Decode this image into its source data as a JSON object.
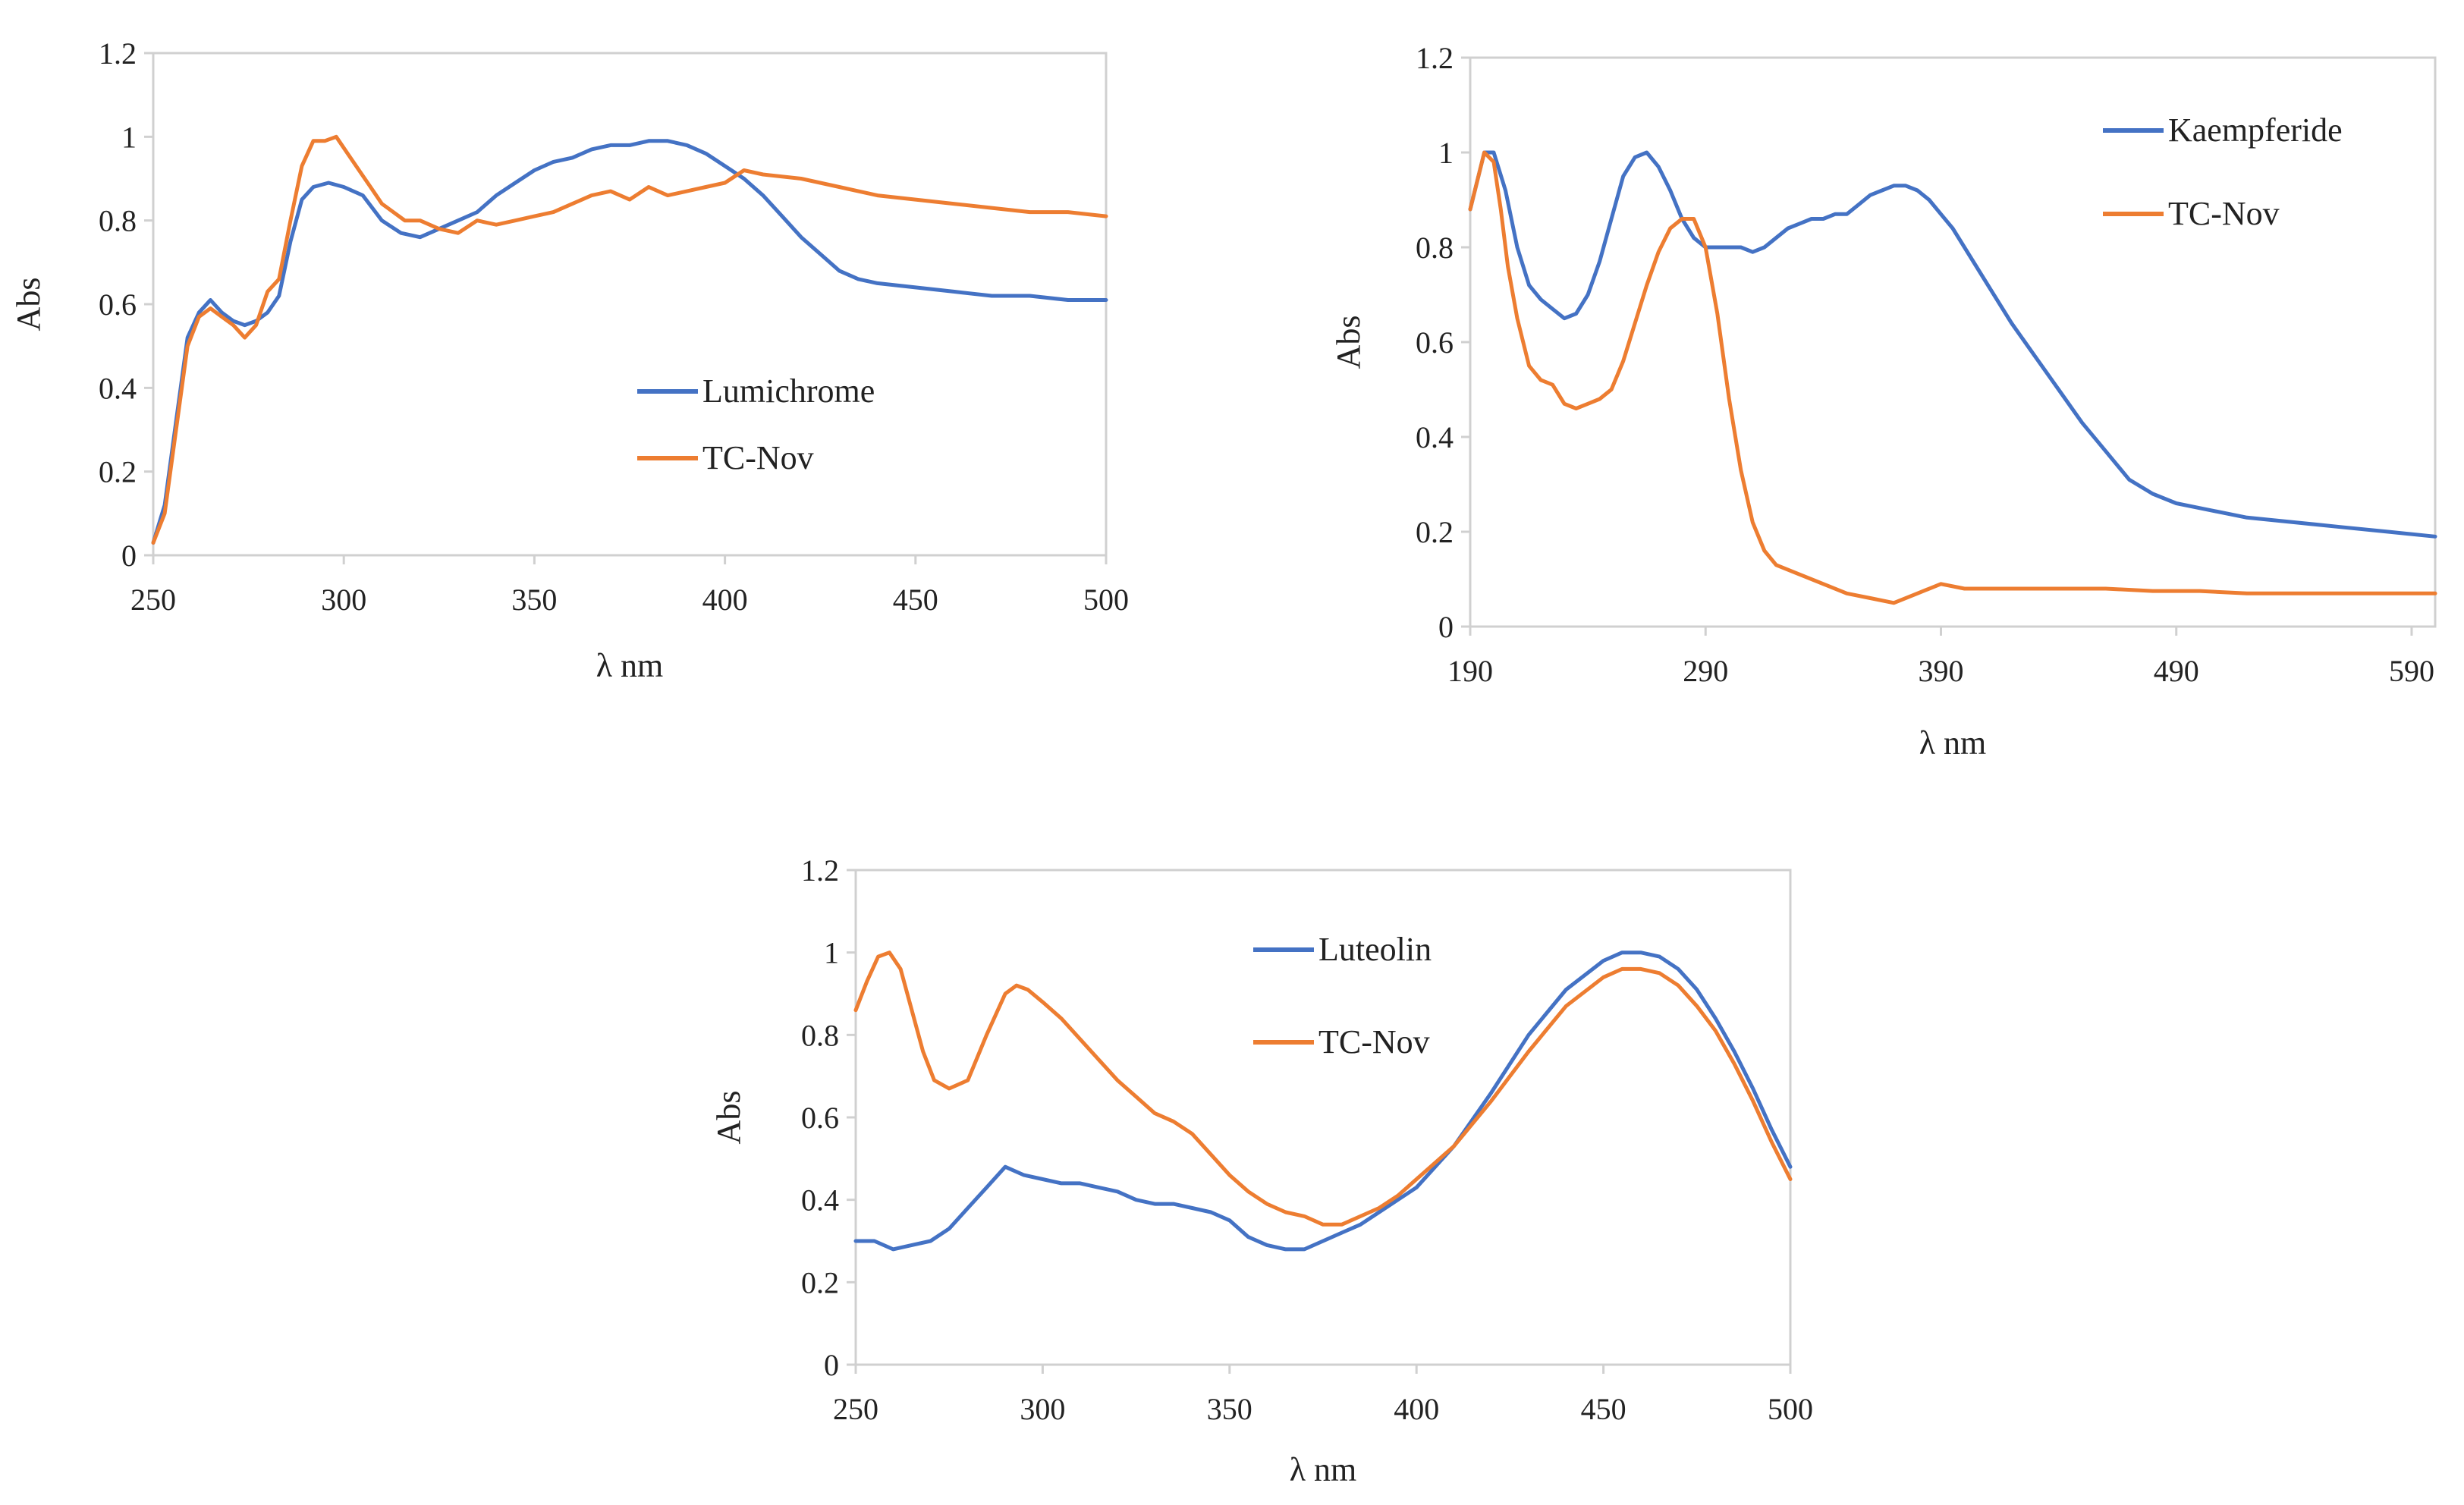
{
  "figure": {
    "panels": 3
  },
  "colors": {
    "blue": "#4472C4",
    "orange": "#ED7D31",
    "axis": "#d0d0d0"
  },
  "chart_data": [
    {
      "type": "line",
      "title": "",
      "xlabel": "λ nm",
      "ylabel": "Abs",
      "xlim": [
        250,
        500
      ],
      "ylim": [
        0,
        1.2
      ],
      "xticks": [
        250,
        300,
        350,
        400,
        450,
        500
      ],
      "xtick_labels": [
        "250",
        "300",
        "350",
        "400",
        "450",
        "500"
      ],
      "yticks": [
        0,
        0.2,
        0.4,
        0.6,
        0.8,
        1,
        1.2
      ],
      "ytick_labels": [
        "0",
        "0.2",
        "0.4",
        "0.6",
        "0.8",
        "1",
        "1.2"
      ],
      "legend_position": "center-right",
      "series": [
        {
          "name": "Lumichrome",
          "color": "#4472C4",
          "x": [
            250,
            253,
            256,
            259,
            262,
            265,
            268,
            271,
            274,
            277,
            280,
            283,
            286,
            289,
            292,
            296,
            300,
            305,
            310,
            315,
            320,
            325,
            330,
            335,
            340,
            345,
            350,
            355,
            360,
            365,
            370,
            375,
            380,
            385,
            390,
            395,
            400,
            405,
            410,
            415,
            420,
            425,
            430,
            435,
            440,
            450,
            460,
            470,
            480,
            490,
            500
          ],
          "y": [
            0.03,
            0.12,
            0.32,
            0.52,
            0.58,
            0.61,
            0.58,
            0.56,
            0.55,
            0.56,
            0.58,
            0.62,
            0.75,
            0.85,
            0.88,
            0.89,
            0.88,
            0.86,
            0.8,
            0.77,
            0.76,
            0.78,
            0.8,
            0.82,
            0.86,
            0.89,
            0.92,
            0.94,
            0.95,
            0.97,
            0.98,
            0.98,
            0.99,
            0.99,
            0.98,
            0.96,
            0.93,
            0.9,
            0.86,
            0.81,
            0.76,
            0.72,
            0.68,
            0.66,
            0.65,
            0.64,
            0.63,
            0.62,
            0.62,
            0.61,
            0.61
          ]
        },
        {
          "name": "TC-Nov",
          "color": "#ED7D31",
          "x": [
            250,
            253,
            256,
            259,
            262,
            265,
            268,
            271,
            274,
            277,
            280,
            283,
            286,
            289,
            292,
            295,
            298,
            301,
            304,
            307,
            310,
            313,
            316,
            320,
            325,
            330,
            335,
            340,
            345,
            350,
            355,
            360,
            365,
            370,
            375,
            380,
            385,
            390,
            395,
            400,
            405,
            410,
            420,
            430,
            440,
            450,
            460,
            470,
            480,
            490,
            500
          ],
          "y": [
            0.03,
            0.1,
            0.3,
            0.5,
            0.57,
            0.59,
            0.57,
            0.55,
            0.52,
            0.55,
            0.63,
            0.66,
            0.8,
            0.93,
            0.99,
            0.99,
            1.0,
            0.96,
            0.92,
            0.88,
            0.84,
            0.82,
            0.8,
            0.8,
            0.78,
            0.77,
            0.8,
            0.79,
            0.8,
            0.81,
            0.82,
            0.84,
            0.86,
            0.87,
            0.85,
            0.88,
            0.86,
            0.87,
            0.88,
            0.89,
            0.92,
            0.91,
            0.9,
            0.88,
            0.86,
            0.85,
            0.84,
            0.83,
            0.82,
            0.82,
            0.81
          ]
        }
      ]
    },
    {
      "type": "line",
      "title": "",
      "xlabel": "λ nm",
      "ylabel": "Abs",
      "xlim": [
        190,
        600
      ],
      "ylim": [
        0,
        1.2
      ],
      "xticks": [
        190,
        290,
        390,
        490,
        590
      ],
      "xtick_labels": [
        "190",
        "290",
        "390",
        "490",
        "590"
      ],
      "yticks": [
        0,
        0.2,
        0.4,
        0.6,
        0.8,
        1,
        1.2
      ],
      "ytick_labels": [
        "0",
        "0.2",
        "0.4",
        "0.6",
        "0.8",
        "1",
        "1.2"
      ],
      "legend_position": "top-right",
      "series": [
        {
          "name": "Kaempferide",
          "color": "#4472C4",
          "x": [
            190,
            193,
            196,
            200,
            205,
            210,
            215,
            220,
            225,
            230,
            235,
            240,
            245,
            250,
            255,
            260,
            265,
            270,
            275,
            280,
            285,
            290,
            295,
            300,
            305,
            310,
            315,
            320,
            325,
            330,
            335,
            340,
            345,
            350,
            355,
            360,
            365,
            370,
            375,
            380,
            385,
            390,
            395,
            400,
            405,
            410,
            420,
            430,
            440,
            450,
            460,
            470,
            480,
            490,
            500,
            520,
            540,
            560,
            580,
            600
          ],
          "y": [
            0.88,
            0.94,
            1.0,
            1.0,
            0.92,
            0.8,
            0.72,
            0.69,
            0.67,
            0.65,
            0.66,
            0.7,
            0.77,
            0.86,
            0.95,
            0.99,
            1.0,
            0.97,
            0.92,
            0.86,
            0.82,
            0.8,
            0.8,
            0.8,
            0.8,
            0.79,
            0.8,
            0.82,
            0.84,
            0.85,
            0.86,
            0.86,
            0.87,
            0.87,
            0.89,
            0.91,
            0.92,
            0.93,
            0.93,
            0.92,
            0.9,
            0.87,
            0.84,
            0.8,
            0.76,
            0.72,
            0.64,
            0.57,
            0.5,
            0.43,
            0.37,
            0.31,
            0.28,
            0.26,
            0.25,
            0.23,
            0.22,
            0.21,
            0.2,
            0.19
          ]
        },
        {
          "name": "TC-Nov",
          "color": "#ED7D31",
          "x": [
            190,
            193,
            196,
            200,
            203,
            206,
            210,
            215,
            220,
            225,
            230,
            235,
            240,
            245,
            250,
            255,
            260,
            265,
            270,
            275,
            280,
            285,
            290,
            295,
            300,
            305,
            310,
            315,
            320,
            330,
            340,
            350,
            360,
            370,
            380,
            390,
            400,
            420,
            440,
            460,
            480,
            500,
            520,
            540,
            560,
            580,
            600
          ],
          "y": [
            0.88,
            0.94,
            1.0,
            0.98,
            0.88,
            0.76,
            0.65,
            0.55,
            0.52,
            0.51,
            0.47,
            0.46,
            0.47,
            0.48,
            0.5,
            0.56,
            0.64,
            0.72,
            0.79,
            0.84,
            0.86,
            0.86,
            0.8,
            0.66,
            0.48,
            0.33,
            0.22,
            0.16,
            0.13,
            0.11,
            0.09,
            0.07,
            0.06,
            0.05,
            0.07,
            0.09,
            0.08,
            0.08,
            0.08,
            0.08,
            0.075,
            0.075,
            0.07,
            0.07,
            0.07,
            0.07,
            0.07
          ]
        }
      ]
    },
    {
      "type": "line",
      "title": "",
      "xlabel": "λ nm",
      "ylabel": "Abs",
      "xlim": [
        250,
        500
      ],
      "ylim": [
        0,
        1.2
      ],
      "xticks": [
        250,
        300,
        350,
        400,
        450,
        500
      ],
      "xtick_labels": [
        "250",
        "300",
        "350",
        "400",
        "450",
        "500"
      ],
      "yticks": [
        0,
        0.2,
        0.4,
        0.6,
        0.8,
        1,
        1.2
      ],
      "ytick_labels": [
        "0",
        "0.2",
        "0.4",
        "0.6",
        "0.8",
        "1",
        "1.2"
      ],
      "legend_position": "top-center",
      "series": [
        {
          "name": "Luteolin",
          "color": "#4472C4",
          "x": [
            250,
            255,
            260,
            265,
            270,
            275,
            280,
            285,
            290,
            295,
            300,
            305,
            310,
            315,
            320,
            325,
            330,
            335,
            340,
            345,
            350,
            355,
            360,
            365,
            370,
            375,
            380,
            385,
            390,
            395,
            400,
            410,
            420,
            430,
            440,
            450,
            455,
            460,
            465,
            470,
            475,
            480,
            485,
            490,
            495,
            500
          ],
          "y": [
            0.3,
            0.3,
            0.28,
            0.29,
            0.3,
            0.33,
            0.38,
            0.43,
            0.48,
            0.46,
            0.45,
            0.44,
            0.44,
            0.43,
            0.42,
            0.4,
            0.39,
            0.39,
            0.38,
            0.37,
            0.35,
            0.31,
            0.29,
            0.28,
            0.28,
            0.3,
            0.32,
            0.34,
            0.37,
            0.4,
            0.43,
            0.53,
            0.66,
            0.8,
            0.91,
            0.98,
            1.0,
            1.0,
            0.99,
            0.96,
            0.91,
            0.84,
            0.76,
            0.67,
            0.57,
            0.48
          ]
        },
        {
          "name": "TC-Nov",
          "color": "#ED7D31",
          "x": [
            250,
            253,
            256,
            259,
            262,
            265,
            268,
            271,
            275,
            280,
            285,
            290,
            293,
            296,
            300,
            305,
            310,
            315,
            320,
            325,
            330,
            335,
            340,
            345,
            350,
            355,
            360,
            365,
            370,
            375,
            380,
            385,
            390,
            395,
            400,
            410,
            420,
            430,
            440,
            450,
            455,
            460,
            465,
            470,
            475,
            480,
            485,
            490,
            495,
            500
          ],
          "y": [
            0.86,
            0.93,
            0.99,
            1.0,
            0.96,
            0.86,
            0.76,
            0.69,
            0.67,
            0.69,
            0.8,
            0.9,
            0.92,
            0.91,
            0.88,
            0.84,
            0.79,
            0.74,
            0.69,
            0.65,
            0.61,
            0.59,
            0.56,
            0.51,
            0.46,
            0.42,
            0.39,
            0.37,
            0.36,
            0.34,
            0.34,
            0.36,
            0.38,
            0.41,
            0.45,
            0.53,
            0.64,
            0.76,
            0.87,
            0.94,
            0.96,
            0.96,
            0.95,
            0.92,
            0.87,
            0.81,
            0.73,
            0.64,
            0.54,
            0.45
          ]
        }
      ]
    }
  ]
}
